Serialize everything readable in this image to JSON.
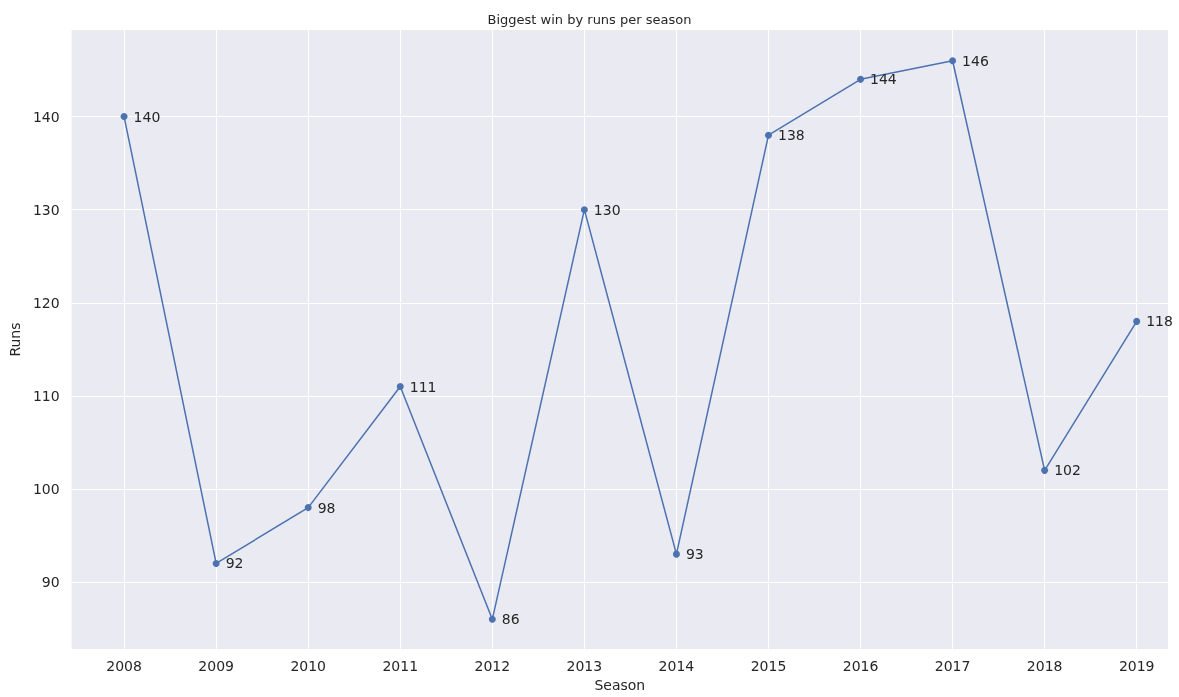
{
  "chart_data": {
    "type": "line",
    "title": "Biggest win by runs per season",
    "xlabel": "Season",
    "ylabel": "Runs",
    "x": [
      2008,
      2009,
      2010,
      2011,
      2012,
      2013,
      2014,
      2015,
      2016,
      2017,
      2018,
      2019
    ],
    "series": [
      {
        "color": "#4c72b0",
        "values": [
          140,
          92,
          98,
          111,
          86,
          130,
          93,
          138,
          144,
          146,
          102,
          118
        ]
      }
    ],
    "xlim": [
      2007.43,
      2019.34
    ],
    "xticks": [
      2008,
      2009,
      2010,
      2011,
      2012,
      2013,
      2014,
      2015,
      2016,
      2017,
      2018,
      2019
    ],
    "ylim": [
      82.8,
      149.3
    ],
    "yticks": [
      90,
      100,
      110,
      120,
      130,
      140
    ],
    "grid": true,
    "marker": "circle",
    "line_style": "solid",
    "data_labels": true
  }
}
